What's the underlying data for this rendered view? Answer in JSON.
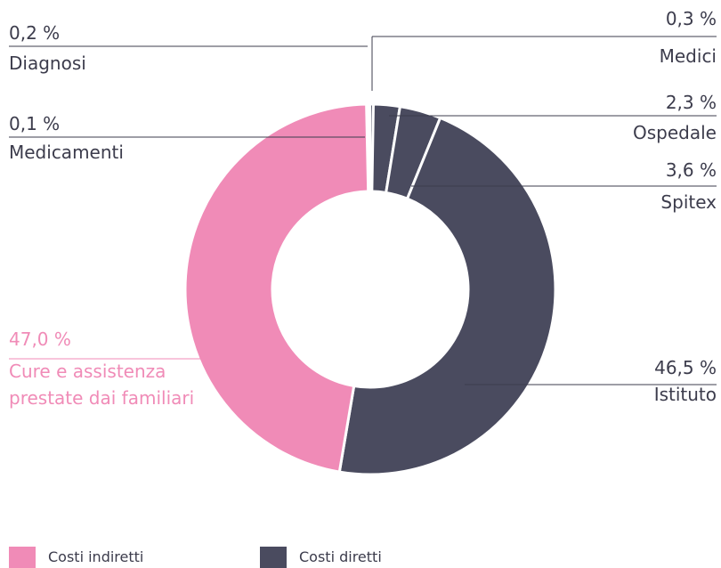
{
  "chart_data": {
    "type": "donut",
    "categories": [
      "Medicamenti",
      "Diagnosi",
      "Medici",
      "Ospedale",
      "Spitex",
      "Istituto",
      "Cure e assistenza prestate dai familiari"
    ],
    "values": [
      0.1,
      0.2,
      0.3,
      2.3,
      3.6,
      46.5,
      47.0
    ],
    "value_labels": [
      "0,1 %",
      "0,2 %",
      "0,3 %",
      "2,3 %",
      "3,6 %",
      "46,5 %",
      "47,0 %"
    ],
    "colors": [
      "#4a4b5f",
      "#4a4b5f",
      "#4a4b5f",
      "#4a4b5f",
      "#4a4b5f",
      "#4a4b5f",
      "#f08bb7"
    ],
    "legend": [
      {
        "name": "Costi indiretti",
        "color": "#f08bb7"
      },
      {
        "name": "Costi diretti",
        "color": "#4a4b5f"
      }
    ]
  }
}
